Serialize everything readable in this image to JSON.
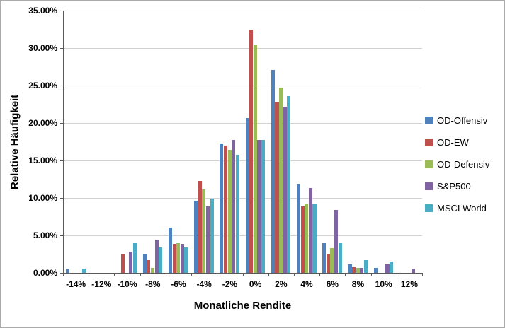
{
  "chart_data": {
    "type": "bar",
    "title": "",
    "xlabel": "Monatliche Rendite",
    "ylabel": "Relative Häufigkeit",
    "ylim": [
      0,
      35
    ],
    "grid": true,
    "legend_position": "right",
    "y_ticks": [
      {
        "label": "0.00%",
        "value": 0
      },
      {
        "label": "5.00%",
        "value": 5
      },
      {
        "label": "10.00%",
        "value": 10
      },
      {
        "label": "15.00%",
        "value": 15
      },
      {
        "label": "20.00%",
        "value": 20
      },
      {
        "label": "25.00%",
        "value": 25
      },
      {
        "label": "30.00%",
        "value": 30
      },
      {
        "label": "35.00%",
        "value": 35
      }
    ],
    "categories": [
      "-14%",
      "-12%",
      "-10%",
      "-8%",
      "-6%",
      "-4%",
      "-2%",
      "0%",
      "2%",
      "4%",
      "6%",
      "8%",
      "10%",
      "12%"
    ],
    "series": [
      {
        "name": "OD-Offensiv",
        "color": "#4F81BD",
        "values": [
          0.6,
          0,
          0,
          2.5,
          6.0,
          9.6,
          17.3,
          20.7,
          27.1,
          11.9,
          4.0,
          1.1,
          0.7,
          0
        ]
      },
      {
        "name": "OD-EW",
        "color": "#C0504D",
        "values": [
          0,
          0,
          2.5,
          1.7,
          3.9,
          12.3,
          17.0,
          32.5,
          22.8,
          8.9,
          2.5,
          0.8,
          0,
          0
        ]
      },
      {
        "name": "OD-Defensiv",
        "color": "#9BBB59",
        "values": [
          0,
          0,
          0,
          0.7,
          4.0,
          11.1,
          16.4,
          30.4,
          24.7,
          9.2,
          3.3,
          0.7,
          0,
          0
        ]
      },
      {
        "name": "S&P500",
        "color": "#8064A2",
        "values": [
          0,
          0,
          2.8,
          4.4,
          3.9,
          8.9,
          17.7,
          17.7,
          22.2,
          11.3,
          8.4,
          0.7,
          1.1,
          0.6
        ]
      },
      {
        "name": "MSCI World",
        "color": "#4BACC6",
        "values": [
          0.6,
          0,
          4.0,
          3.4,
          3.4,
          9.9,
          15.8,
          17.7,
          23.6,
          9.2,
          4.0,
          1.7,
          1.5,
          0
        ]
      }
    ]
  }
}
